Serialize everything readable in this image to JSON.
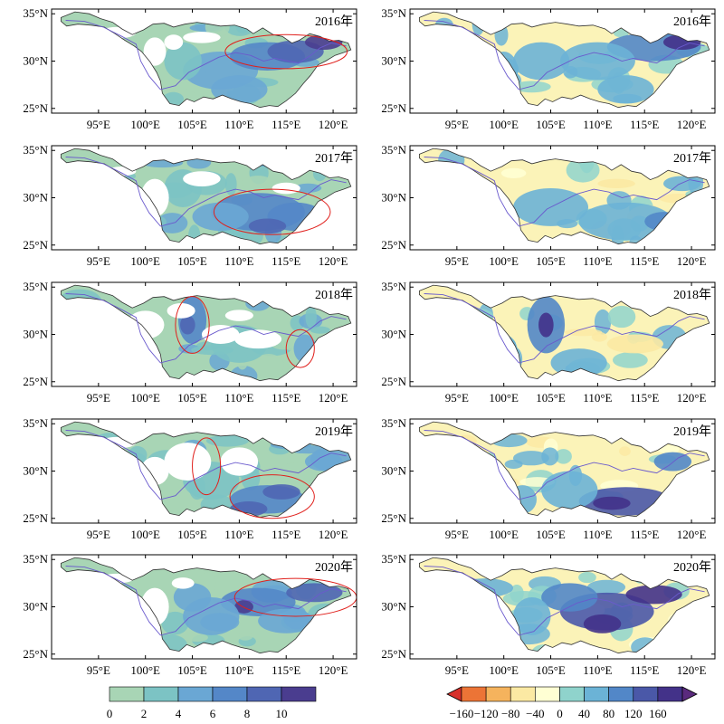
{
  "chart_data": {
    "type": "heatmap",
    "years": [
      "2016年",
      "2017年",
      "2018年",
      "2019年",
      "2020年"
    ],
    "lon_ticks": [
      "95°E",
      "100°E",
      "105°E",
      "110°E",
      "115°E",
      "120°E"
    ],
    "lon_values": [
      95,
      100,
      105,
      110,
      115,
      120
    ],
    "lat_ticks": [
      "35°N",
      "30°N",
      "25°N"
    ],
    "lat_values": [
      35,
      30,
      25
    ],
    "xlim": [
      90,
      122.5
    ],
    "ylim": [
      24.5,
      35.5
    ],
    "left_colorbar": {
      "tick_labels": [
        "0",
        "2",
        "4",
        "6",
        "8",
        "10"
      ],
      "colors": [
        "#a8d5b5",
        "#7cc3c4",
        "#6aa7d4",
        "#5487c8",
        "#4f66b3",
        "#4a3d8f",
        "#5a2a7e"
      ]
    },
    "right_colorbar": {
      "tick_labels": [
        "−160",
        "−120",
        "−80",
        "−40",
        "0",
        "40",
        "80",
        "120",
        "160"
      ],
      "colors": [
        "#d7302b",
        "#ec7436",
        "#f5b35d",
        "#fbe9a3",
        "#ffffd3",
        "#8fd3cc",
        "#6bb3d6",
        "#5287c8",
        "#4a58a8",
        "#433289",
        "#5a2a7e"
      ]
    },
    "panels": [
      {
        "year": "2016年",
        "left_circled": [
          {
            "lon": 115,
            "lat": 31,
            "rx": 6.5,
            "ry": 1.8
          }
        ]
      },
      {
        "year": "2017年",
        "left_circled": [
          {
            "lon": 113.5,
            "lat": 28.5,
            "rx": 6.2,
            "ry": 2.4
          }
        ]
      },
      {
        "year": "2018年",
        "left_circled": [
          {
            "lon": 105,
            "lat": 31,
            "rx": 1.8,
            "ry": 3
          },
          {
            "lon": 116.5,
            "lat": 28.5,
            "rx": 1.5,
            "ry": 2
          }
        ]
      },
      {
        "year": "2019年",
        "left_circled": [
          {
            "lon": 106.5,
            "lat": 30.5,
            "rx": 1.5,
            "ry": 3
          },
          {
            "lon": 113.5,
            "lat": 27.3,
            "rx": 4.5,
            "ry": 2.3
          }
        ]
      },
      {
        "year": "2020年",
        "left_circled": [
          {
            "lon": 116,
            "lat": 31,
            "rx": 6.5,
            "ry": 2
          }
        ]
      }
    ]
  }
}
